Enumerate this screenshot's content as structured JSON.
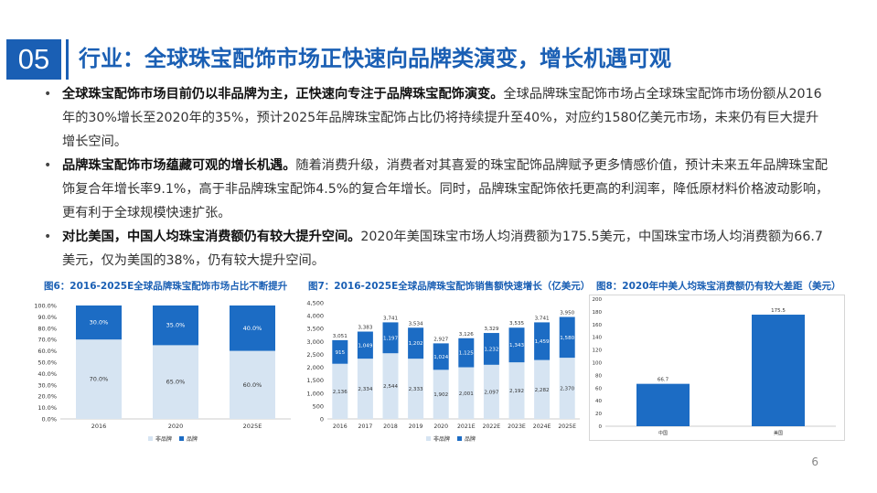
{
  "section_number": "05",
  "title": "行业：全球珠宝配饰市场正快速向品牌类演变，增长机遇可观",
  "bullets": [
    {
      "bold": "全球珠宝配饰市场目前仍以非品牌为主，正快速向专注于品牌珠宝配饰演变。",
      "text": "全球品牌珠宝配饰市场占全球珠宝配饰市场份额从2016年的30%增长至2020年的35%，预计2025年品牌珠宝配饰占比仍将持续提升至40%，对应约1580亿美元市场，未来仍有巨大提升增长空间。"
    },
    {
      "bold": "品牌珠宝配饰市场蕴藏可观的增长机遇。",
      "text": "随着消费升级，消费者对其喜爱的珠宝配饰品牌赋予更多情感价值，预计未来五年品牌珠宝配饰复合年增长率9.1%，高于非品牌珠宝配饰4.5%的复合年增长。同时，品牌珠宝配饰依托更高的利润率，降低原材料价格波动影响，更有利于全球规模快速扩张。"
    },
    {
      "bold": "对比美国，中国人均珠宝消费额仍有较大提升空间。",
      "text": "2020年美国珠宝市场人均消费额为175.5美元，中国珠宝市场人均消费额为66.7美元，仅为美国的38%，仍有较大提升空间。"
    }
  ],
  "figures": {
    "fig6_title": "图6：2016-2025E全球品牌珠宝配饰市场占比不断提升",
    "fig7_title": "图7：2016-2025E全球品牌珠宝配饰销售额快速增长（亿美元）",
    "fig8_title": "图8：2020年中美人均珠宝消费额仍有较大差距（美元）"
  },
  "page_number": "6",
  "colors": {
    "accent": "#1a5fb4",
    "nonbrand": "#d6e4f2",
    "brand": "#1c6cc4"
  },
  "chart_data": [
    {
      "type": "bar",
      "stacked": true,
      "percent": true,
      "categories": [
        "2016",
        "2020",
        "2025E"
      ],
      "series": [
        {
          "name": "非品牌",
          "values": [
            70.0,
            65.0,
            60.0
          ]
        },
        {
          "name": "品牌",
          "values": [
            30.0,
            35.0,
            40.0
          ]
        }
      ],
      "ylim": [
        0,
        100
      ],
      "yticks": [
        "0.0%",
        "10.0%",
        "20.0%",
        "30.0%",
        "40.0%",
        "50.0%",
        "60.0%",
        "70.0%",
        "80.0%",
        "90.0%",
        "100.0%"
      ],
      "labels_nonbrand": [
        "70.0%",
        "65.0%",
        "60.0%"
      ],
      "labels_brand": [
        "30.0%",
        "35.0%",
        "40.0%"
      ],
      "legend": "bottom"
    },
    {
      "type": "bar",
      "stacked": true,
      "categories": [
        "2016",
        "2017",
        "2018",
        "2019",
        "2020",
        "2021E",
        "2022E",
        "2023E",
        "2024E",
        "2025E"
      ],
      "series": [
        {
          "name": "非品牌",
          "values": [
            2136,
            2334,
            2544,
            2333,
            1902,
            2001,
            2097,
            2192,
            2282,
            2370
          ]
        },
        {
          "name": "品牌",
          "values": [
            915,
            1049,
            1197,
            1202,
            1024,
            1125,
            1232,
            1343,
            1459,
            1580
          ]
        }
      ],
      "totals": [
        3051,
        3383,
        3741,
        3534,
        2927,
        3126,
        3329,
        3535,
        3741,
        3950
      ],
      "labels_nonbrand": [
        "2,136",
        "2,334",
        "2,544",
        "2,333",
        "1,902",
        "2,001",
        "2,097",
        "2,192",
        "2,282",
        "2,370"
      ],
      "labels_brand": [
        "915",
        "1,049",
        "1,197",
        "1,202",
        "1,024",
        "1,125",
        "1,232",
        "1,343",
        "1,459",
        "1,580"
      ],
      "labels_total": [
        "3,051",
        "3,383",
        "3,741",
        "3,534",
        "2,927",
        "3,126",
        "3,329",
        "3,535",
        "3,741",
        "3,950"
      ],
      "ylim": [
        0,
        4500
      ],
      "yticks": [
        "0",
        "500",
        "1,000",
        "1,500",
        "2,000",
        "2,500",
        "3,000",
        "3,500",
        "4,000",
        "4,500"
      ],
      "legend": "bottom"
    },
    {
      "type": "bar",
      "categories": [
        "中国",
        "美国"
      ],
      "values": [
        66.7,
        175.5
      ],
      "labels": [
        "66.7",
        "175.5"
      ],
      "ylim": [
        0,
        200
      ],
      "yticks": [
        "0",
        "20",
        "40",
        "60",
        "80",
        "100",
        "120",
        "140",
        "160",
        "180",
        "200"
      ]
    }
  ]
}
